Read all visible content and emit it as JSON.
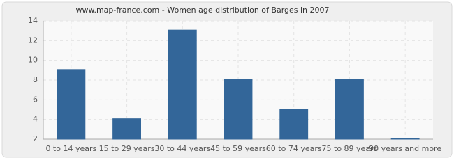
{
  "chart_data": {
    "type": "bar",
    "title": "www.map-france.com - Women age distribution of Barges in 2007",
    "categories": [
      "0 to 14 years",
      "15 to 29 years",
      "30 to 44 years",
      "45 to 59 years",
      "60 to 74 years",
      "75 to 89 years",
      "90 years and more"
    ],
    "values": [
      9,
      4,
      13,
      8,
      5,
      8,
      2
    ],
    "color": "#336699",
    "ylim": [
      2,
      14
    ],
    "yticks": [
      2,
      4,
      6,
      8,
      10,
      12,
      14
    ],
    "grid": true
  }
}
